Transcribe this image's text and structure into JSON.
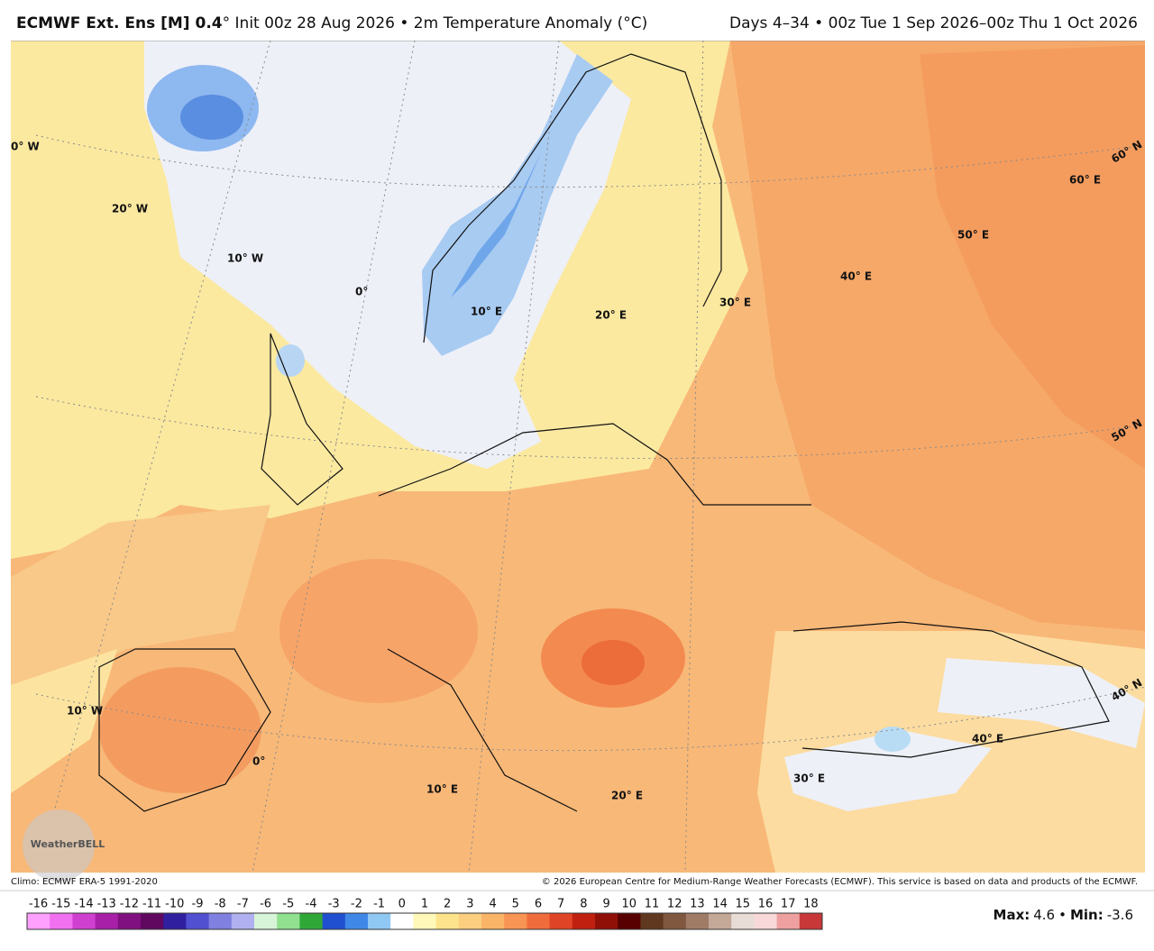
{
  "header": {
    "title_bold": "ECMWF Ext.  Ens [M] 0.4",
    "title_rest": "° Init 00z 28 Aug 2026 • 2m Temperature Anomaly (°C)",
    "valid": "Days 4–34 • 00z Tue 1 Sep 2026–00z Thu 1 Oct 2026"
  },
  "map": {
    "labels": [
      "0° W",
      "20° W",
      "10° W",
      "0°",
      "10° E",
      "20° E",
      "30° E",
      "40° E",
      "50° E",
      "60° E",
      "60° N",
      "50° N",
      "40° N",
      "10° W",
      "0°",
      "10° E",
      "20° E",
      "30° E",
      "40° E"
    ],
    "logo": "WeatherBELL"
  },
  "footer": {
    "climo": "Climo: ECMWF ERA-5 1991-2020",
    "copyright": "© 2026 European Centre for Medium-Range Weather Forecasts (ECMWF). This service is based on data and products of the ECMWF."
  },
  "colorbar": {
    "ticks": [
      -16,
      -15,
      -14,
      -13,
      -12,
      -11,
      -10,
      -9,
      -8,
      -7,
      -6,
      -5,
      -4,
      -3,
      -2,
      -1,
      0,
      1,
      2,
      3,
      4,
      5,
      6,
      7,
      8,
      9,
      10,
      11,
      12,
      13,
      14,
      15,
      16,
      17,
      18
    ],
    "colors": [
      "#ffa0ff",
      "#f070f0",
      "#d040d0",
      "#a820a8",
      "#801080",
      "#600860",
      "#3020a0",
      "#5050d0",
      "#8080e0",
      "#b0b0f0",
      "#d8f4d8",
      "#90e090",
      "#30a838",
      "#2050d0",
      "#4088e8",
      "#90c8f4",
      "#ffffff",
      "#fff8b8",
      "#fde48c",
      "#fcce80",
      "#fab468",
      "#f89454",
      "#f06c3c",
      "#e04426",
      "#c02010",
      "#901008",
      "#580000",
      "#603820",
      "#805840",
      "#a07c66",
      "#c4a898",
      "#e8dcd6",
      "#f8d8d8",
      "#eea0a0",
      "#c83838"
    ]
  },
  "stats": {
    "max_label": "Max:",
    "max": 4.6,
    "min_label": "Min:",
    "min": -3.6
  }
}
